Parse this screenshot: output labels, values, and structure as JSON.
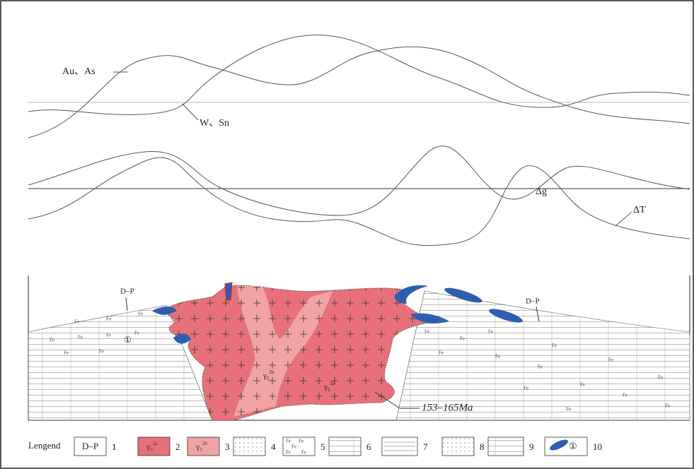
{
  "profiles": {
    "geochem": [
      {
        "label": "Au、As"
      },
      {
        "label": "W、Sn"
      }
    ],
    "geophys": [
      {
        "label": "Δg"
      },
      {
        "label": "ΔT"
      }
    ]
  },
  "section": {
    "labels": [
      "D–P",
      "D–P",
      "①"
    ],
    "fe_mark": "Fe",
    "granite_a": {
      "base": "γ",
      "sub": "5",
      "sup": "2a"
    },
    "granite_b": {
      "base": "γ",
      "sub": "5",
      "sup": "2b"
    },
    "age": "153–165Ma"
  },
  "legend": {
    "title": "Lengend",
    "items": [
      {
        "symbol": "D–P",
        "number": "1"
      },
      {
        "symbol": {
          "base": "γ",
          "sub": "5",
          "sup": "2a"
        },
        "number": "2"
      },
      {
        "symbol": {
          "base": "γ",
          "sub": "5",
          "sup": "2b"
        },
        "number": "3"
      },
      {
        "number": "4"
      },
      {
        "number": "5"
      },
      {
        "number": "6"
      },
      {
        "number": "7"
      },
      {
        "number": "8"
      },
      {
        "number": "9"
      },
      {
        "symbol": "①",
        "number": "10"
      }
    ]
  }
}
